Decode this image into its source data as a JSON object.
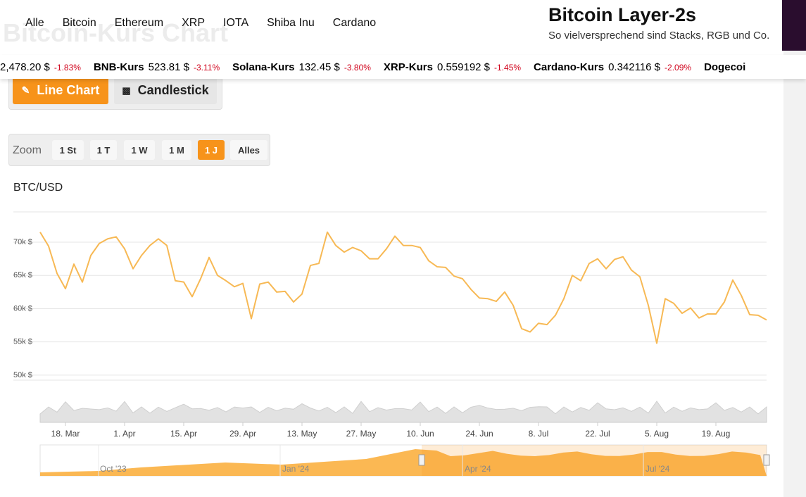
{
  "header": {
    "nav": [
      "Alle",
      "Bitcoin",
      "Ethereum",
      "XRP",
      "IOTA",
      "Shiba Inu",
      "Cardano"
    ],
    "background_title": "Bitcoin-Kurs Chart",
    "promo_title": "Bitcoin Layer-2s",
    "promo_subtitle": "So vielversprechend sind Stacks, RGB und Co."
  },
  "ticker": [
    {
      "name": "",
      "price": "2,478.20 $",
      "change": "-1.83%"
    },
    {
      "name": "BNB-Kurs",
      "price": "523.81 $",
      "change": "-3.11%"
    },
    {
      "name": "Solana-Kurs",
      "price": "132.45 $",
      "change": "-3.80%"
    },
    {
      "name": "XRP-Kurs",
      "price": "0.559192 $",
      "change": "-1.45%"
    },
    {
      "name": "Cardano-Kurs",
      "price": "0.342116 $",
      "change": "-2.09%"
    },
    {
      "name": "Dogecoi",
      "price": "",
      "change": ""
    }
  ],
  "chart_types": [
    "Line Chart",
    "Candlestick"
  ],
  "zoom": {
    "label": "Zoom",
    "buttons": [
      "1 St",
      "1 T",
      "1 W",
      "1 M",
      "1 J",
      "Alles"
    ],
    "active": 4
  },
  "navigator": {
    "labels": [
      "Oct '23",
      "Jan '24",
      "Apr '24",
      "Jul '24"
    ]
  },
  "chart_data": {
    "type": "line",
    "title": "BTC/USD",
    "categories": [
      null,
      null,
      null,
      "18. Mar",
      null,
      null,
      null,
      null,
      null,
      null,
      "1. Apr",
      null,
      null,
      null,
      null,
      null,
      null,
      "15. Apr",
      null,
      null,
      null,
      null,
      null,
      null,
      "29. Apr",
      null,
      null,
      null,
      null,
      null,
      null,
      "13. May",
      null,
      null,
      null,
      null,
      null,
      null,
      "27. May",
      null,
      null,
      null,
      null,
      null,
      null,
      "10. Jun",
      null,
      null,
      null,
      null,
      null,
      null,
      "24. Jun",
      null,
      null,
      null,
      null,
      null,
      null,
      "8. Jul",
      null,
      null,
      null,
      null,
      null,
      null,
      "22. Jul",
      null,
      null,
      null,
      null,
      null,
      null,
      "5. Aug",
      null,
      null,
      null,
      null,
      null,
      null,
      "19. Aug",
      null,
      null,
      null,
      null,
      null,
      null
    ],
    "series": [
      {
        "name": "BTC/USD",
        "color": "#f7b955",
        "values": [
          71500,
          69400,
          65300,
          63000,
          66700,
          64000,
          68000,
          69800,
          70500,
          70800,
          69000,
          66000,
          68000,
          69500,
          70500,
          69500,
          64200,
          64000,
          61800,
          64500,
          67700,
          65000,
          64200,
          63300,
          63800,
          58500,
          63700,
          64000,
          62500,
          62600,
          61000,
          62200,
          66500,
          66800,
          71500,
          69500,
          68500,
          69200,
          68700,
          67500,
          67500,
          69000,
          70900,
          69500,
          69500,
          69200,
          67200,
          66300,
          66200,
          64900,
          64500,
          62900,
          61600,
          61500,
          61100,
          62500,
          60500,
          57000,
          56500,
          57800,
          57600,
          59000,
          61500,
          65000,
          64200,
          66800,
          67500,
          66000,
          67400,
          67800,
          65800,
          64800,
          60500,
          54800,
          61500,
          60800,
          59300,
          60100,
          58600,
          59200,
          59200,
          61000,
          64300,
          62000,
          59100,
          59000,
          58300
        ]
      }
    ],
    "ylim": [
      49250,
      74550
    ],
    "yticks": [
      {
        "value": 50000,
        "label": "50k $"
      },
      {
        "value": 55000,
        "label": "55k $"
      },
      {
        "value": 60000,
        "label": "60k $"
      },
      {
        "value": 65000,
        "label": "65k $"
      },
      {
        "value": 70000,
        "label": "70k $"
      }
    ],
    "grid": true
  }
}
